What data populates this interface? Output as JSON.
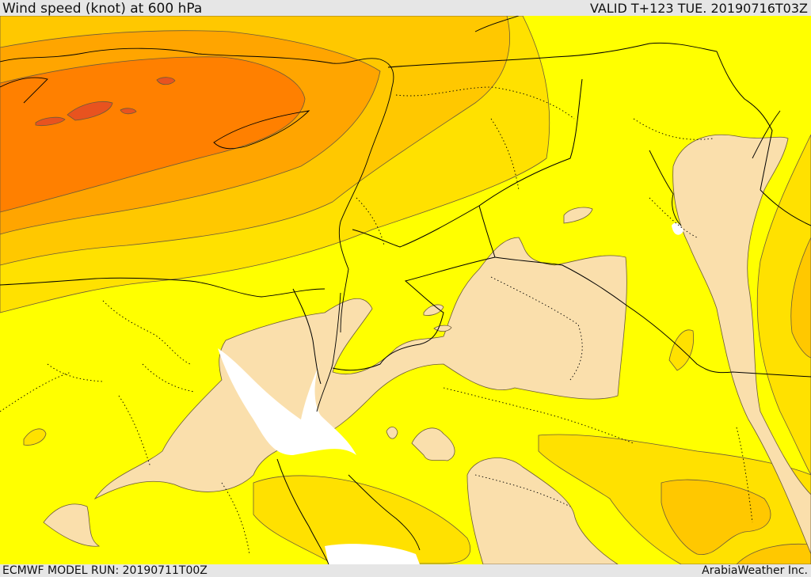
{
  "header": {
    "title": "Wind speed (knot) at 600 hPa",
    "valid": "VALID T+123 TUE. 20190716T03Z"
  },
  "footer": {
    "model_run": "ECMWF MODEL RUN: 20190711T00Z",
    "credit": "ArabiaWeather Inc."
  },
  "map": {
    "fill_colors": {
      "very_light": "#fadfac",
      "light": "#ffff00",
      "moderate": "#ffe100",
      "moderate_high": "#ffc800",
      "high": "#ffa500",
      "very_high": "#ff8000",
      "extreme": "#e8531f",
      "sea_gap": "#ffffff"
    },
    "line_colors": {
      "coastline": "#000000",
      "borders": "#000000",
      "contours": "#6b5a3a"
    }
  }
}
